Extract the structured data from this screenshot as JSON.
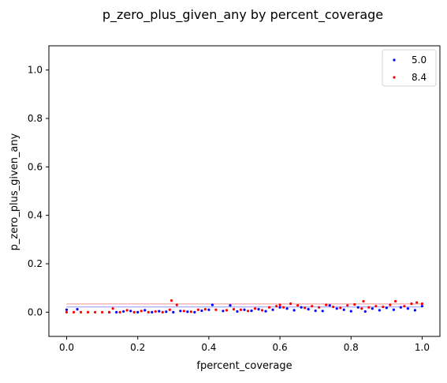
{
  "chart_data": {
    "type": "scatter",
    "title": "p_zero_plus_given_any by percent_coverage",
    "xlabel": "fpercent_coverage",
    "ylabel": "p_zero_plus_given_any",
    "xlim": [
      -0.05,
      1.05
    ],
    "ylim": [
      -0.1,
      1.1
    ],
    "xticks": [
      0.0,
      0.2,
      0.4,
      0.6,
      0.8,
      1.0
    ],
    "xtick_labels": [
      "0.0",
      "0.2",
      "0.4",
      "0.6",
      "0.8",
      "1.0"
    ],
    "yticks": [
      0.0,
      0.2,
      0.4,
      0.6,
      0.8,
      1.0
    ],
    "ytick_labels": [
      "0.0",
      "0.2",
      "0.4",
      "0.6",
      "0.8",
      "1.0"
    ],
    "grid": false,
    "legend_position": "top-right",
    "series": [
      {
        "name": "5.0",
        "color": "#0000ff",
        "mean_line": 0.022,
        "mean_line_color": "#b0b4ff",
        "x": [
          0.0,
          0.03,
          0.12,
          0.14,
          0.16,
          0.18,
          0.2,
          0.22,
          0.24,
          0.26,
          0.28,
          0.3,
          0.32,
          0.34,
          0.36,
          0.38,
          0.4,
          0.41,
          0.44,
          0.46,
          0.48,
          0.5,
          0.52,
          0.54,
          0.56,
          0.58,
          0.6,
          0.62,
          0.64,
          0.66,
          0.68,
          0.7,
          0.72,
          0.74,
          0.76,
          0.78,
          0.8,
          0.82,
          0.84,
          0.86,
          0.88,
          0.9,
          0.92,
          0.94,
          0.96,
          0.98,
          1.0
        ],
        "y": [
          0.01,
          0.012,
          0.0,
          0.0,
          0.003,
          0.005,
          0.0,
          0.008,
          0.0,
          0.004,
          0.002,
          0.0,
          0.005,
          0.002,
          0.0,
          0.006,
          0.01,
          0.03,
          0.005,
          0.028,
          0.003,
          0.01,
          0.006,
          0.012,
          0.004,
          0.01,
          0.02,
          0.015,
          0.008,
          0.02,
          0.012,
          0.006,
          0.005,
          0.028,
          0.015,
          0.01,
          0.004,
          0.02,
          0.003,
          0.015,
          0.008,
          0.018,
          0.01,
          0.02,
          0.015,
          0.008,
          0.025
        ]
      },
      {
        "name": "8.4",
        "color": "#ff0000",
        "mean_line": 0.034,
        "mean_line_color": "#f4b6b6",
        "x": [
          0.0,
          0.02,
          0.04,
          0.06,
          0.08,
          0.1,
          0.12,
          0.13,
          0.15,
          0.17,
          0.19,
          0.21,
          0.23,
          0.25,
          0.27,
          0.29,
          0.295,
          0.31,
          0.33,
          0.35,
          0.37,
          0.39,
          0.42,
          0.45,
          0.47,
          0.49,
          0.51,
          0.53,
          0.55,
          0.57,
          0.59,
          0.6,
          0.61,
          0.63,
          0.65,
          0.67,
          0.69,
          0.71,
          0.73,
          0.75,
          0.77,
          0.79,
          0.81,
          0.83,
          0.835,
          0.85,
          0.87,
          0.89,
          0.91,
          0.925,
          0.95,
          0.97,
          0.985,
          1.0
        ],
        "y": [
          0.0,
          0.0,
          0.0,
          0.0,
          0.0,
          0.0,
          0.0,
          0.015,
          0.0,
          0.008,
          0.0,
          0.005,
          0.0,
          0.003,
          0.0,
          0.01,
          0.048,
          0.03,
          0.005,
          0.002,
          0.01,
          0.012,
          0.01,
          0.008,
          0.012,
          0.01,
          0.005,
          0.015,
          0.008,
          0.02,
          0.025,
          0.03,
          0.02,
          0.035,
          0.028,
          0.018,
          0.025,
          0.02,
          0.03,
          0.022,
          0.018,
          0.028,
          0.032,
          0.015,
          0.045,
          0.02,
          0.025,
          0.022,
          0.03,
          0.045,
          0.025,
          0.035,
          0.04,
          0.035
        ]
      }
    ]
  }
}
